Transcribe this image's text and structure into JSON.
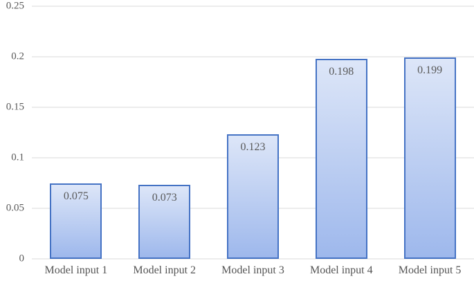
{
  "chart_data": {
    "type": "bar",
    "title": "",
    "xlabel": "",
    "ylabel": "",
    "categories": [
      "Model input 1",
      "Model input 2",
      "Model input 3",
      "Model input 4",
      "Model input 5"
    ],
    "values": [
      0.075,
      0.073,
      0.123,
      0.198,
      0.199
    ],
    "data_labels": [
      "0.075",
      "0.073",
      "0.123",
      "0.198",
      "0.199"
    ],
    "ylim": [
      0,
      0.25
    ],
    "yticks": [
      0,
      0.05,
      0.1,
      0.15,
      0.2,
      0.25
    ],
    "ytick_labels": [
      "0",
      "0.05",
      "0.1",
      "0.15",
      "0.2",
      "0.25"
    ],
    "grid": "horizontal",
    "legend": "none",
    "colors": {
      "bar_border": "#4472c4",
      "bar_fill_top": "#dde6f8",
      "bar_fill_bottom": "#9eb8ec",
      "gridline": "#d9d9d9",
      "tick_text": "#595959",
      "category_text": "#545454"
    }
  }
}
